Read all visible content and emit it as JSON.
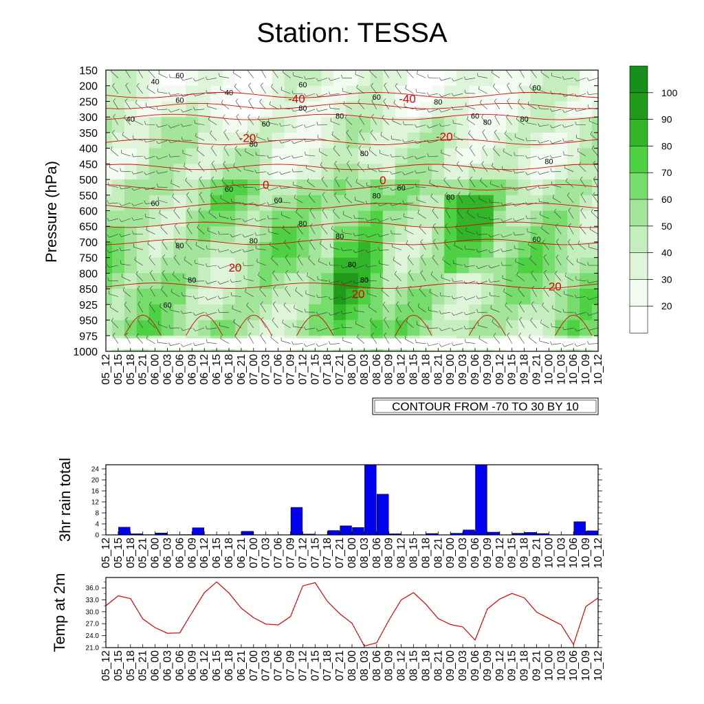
{
  "title": "Station: TESSA",
  "colors": {
    "rain_bar": "#0000ee",
    "temp_line": "#e00000",
    "isotherm": "#dd0000",
    "rh_levels": [
      "#ffffff",
      "#f2fbf0",
      "#dff5da",
      "#c5eebe",
      "#a3e59a",
      "#76dc6c",
      "#4fd144",
      "#33b52a",
      "#1f9a1a"
    ]
  },
  "time_labels": [
    "05_12",
    "05_15",
    "05_18",
    "05_21",
    "06_00",
    "06_03",
    "06_06",
    "06_09",
    "06_12",
    "06_15",
    "06_18",
    "06_21",
    "07_00",
    "07_03",
    "07_06",
    "07_09",
    "07_12",
    "07_15",
    "07_18",
    "07_21",
    "08_00",
    "08_03",
    "08_06",
    "08_09",
    "08_12",
    "08_15",
    "08_18",
    "08_21",
    "09_00",
    "09_03",
    "09_06",
    "09_09",
    "09_12",
    "09_15",
    "09_18",
    "09_21",
    "10_00",
    "10_03",
    "10_06",
    "10_09",
    "10_12"
  ],
  "chart_data": [
    {
      "type": "heatmap",
      "title": "Station: TESSA",
      "ylabel": "Pressure (hPa)",
      "pressure_levels": [
        150,
        200,
        250,
        300,
        350,
        400,
        450,
        500,
        550,
        600,
        650,
        700,
        750,
        800,
        850,
        925,
        950,
        975,
        1000
      ],
      "colorbar_ticks": [
        20,
        30,
        40,
        50,
        60,
        70,
        80,
        90,
        100
      ],
      "field": "relative humidity (shaded) with wind barbs",
      "isotherm_labels": [
        "-40",
        "-40",
        "-20",
        "-20",
        "0",
        "0",
        "20",
        "20",
        "20"
      ],
      "isotherm_levels_c": [
        -40,
        -20,
        0,
        20
      ],
      "contour_line_labels": [
        "40",
        "60",
        "60",
        "40",
        "60",
        "60",
        "40",
        "60",
        "80",
        "60",
        "80",
        "60",
        "80",
        "80",
        "80",
        "80",
        "80",
        "60",
        "60",
        "80",
        "80",
        "60",
        "80",
        "80",
        "80",
        "80",
        "80",
        "60",
        "80",
        "60",
        "80",
        "80",
        "60"
      ],
      "contour_note": "CONTOUR FROM -70 TO 30 BY 10"
    },
    {
      "type": "bar",
      "ylabel": "3hr rain total",
      "y_ticks": [
        "0",
        "4",
        "8",
        "12",
        "16",
        "20",
        "24"
      ],
      "ylim": [
        0,
        25.5
      ],
      "categories_ref": "time_labels",
      "values": [
        0,
        2.8,
        0.4,
        0.1,
        0.7,
        0,
        0.1,
        2.6,
        0,
        0,
        0,
        1.3,
        0,
        0,
        0,
        10,
        0.3,
        0,
        1.6,
        3.3,
        2.7,
        25.5,
        14.8,
        0.4,
        0,
        0,
        0.5,
        0,
        0.6,
        1.8,
        25.5,
        1,
        0,
        0.6,
        0.9,
        0.5,
        0,
        0,
        4.8,
        1.5,
        0
      ]
    },
    {
      "type": "line",
      "ylabel": "Temp at 2m",
      "y_ticks": [
        "21.0",
        "24.0",
        "27.0",
        "30.0",
        "33.0",
        "36.0"
      ],
      "ylim": [
        21.0,
        38.6
      ],
      "categories_ref": "time_labels",
      "values": [
        31.5,
        34.0,
        33.3,
        28.2,
        26.0,
        24.6,
        24.7,
        29.8,
        34.8,
        37.5,
        34.7,
        30.9,
        28.5,
        26.9,
        26.7,
        28.8,
        36.5,
        37.3,
        32.6,
        29.5,
        27.1,
        21.4,
        22.2,
        27.9,
        33.0,
        34.8,
        31.9,
        28.3,
        26.8,
        26.2,
        22.9,
        30.7,
        33.2,
        34.6,
        33.5,
        29.9,
        28.3,
        26.7,
        21.8,
        31.3,
        33.5
      ]
    }
  ]
}
